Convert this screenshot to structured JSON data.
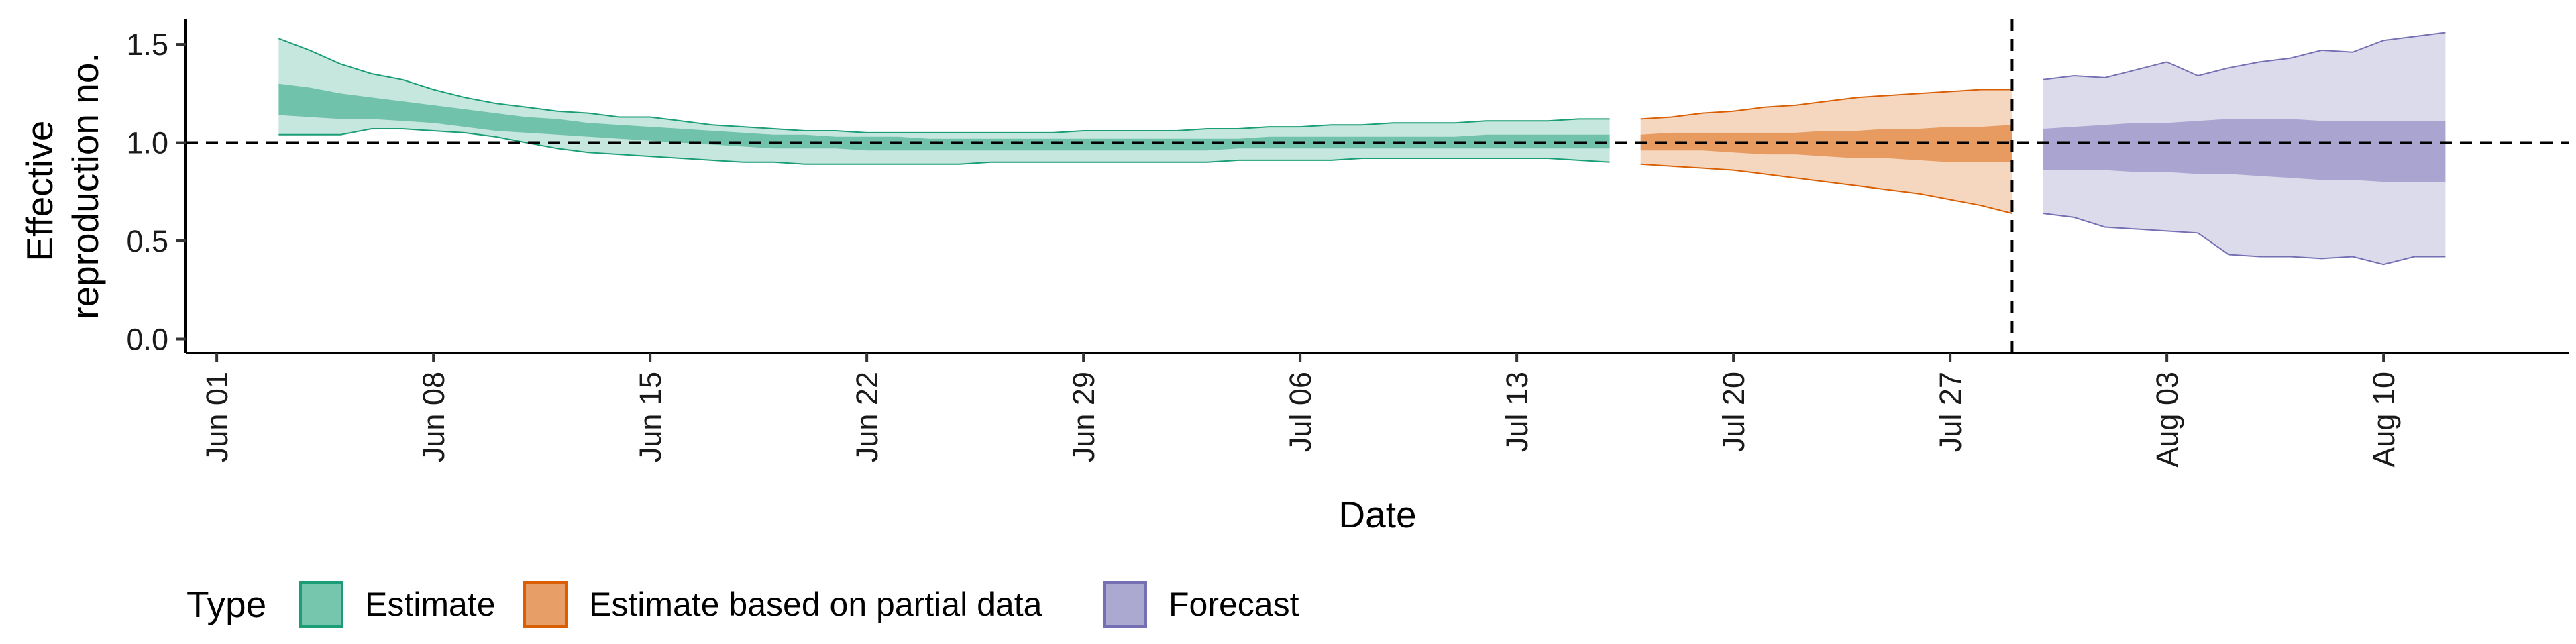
{
  "chart_data": {
    "type": "area",
    "xlabel": "Date",
    "ylabel": [
      "Effective",
      "reproduction no."
    ],
    "x_ticks": [
      "Jun 01",
      "Jun 08",
      "Jun 15",
      "Jun 22",
      "Jun 29",
      "Jul 06",
      "Jul 13",
      "Jul 20",
      "Jul 27",
      "Aug 03",
      "Aug 10"
    ],
    "y_ticks": [
      "0.0",
      "0.5",
      "1.0",
      "1.5"
    ],
    "xlim": [
      "2020-05-31",
      "2020-08-16"
    ],
    "ylim": [
      -0.07,
      1.63
    ],
    "reference_lines": {
      "horizontal_y": 1.0,
      "vertical_date": "2020-07-29"
    },
    "legend": {
      "title": "Type",
      "position": "bottom-left"
    },
    "series": [
      {
        "name": "Estimate",
        "color": "#1b9e77",
        "x": [
          "2020-06-03",
          "2020-06-04",
          "2020-06-05",
          "2020-06-06",
          "2020-06-07",
          "2020-06-08",
          "2020-06-09",
          "2020-06-10",
          "2020-06-11",
          "2020-06-12",
          "2020-06-13",
          "2020-06-14",
          "2020-06-15",
          "2020-06-16",
          "2020-06-17",
          "2020-06-18",
          "2020-06-19",
          "2020-06-20",
          "2020-06-21",
          "2020-06-22",
          "2020-06-23",
          "2020-06-24",
          "2020-06-25",
          "2020-06-26",
          "2020-06-27",
          "2020-06-28",
          "2020-06-29",
          "2020-06-30",
          "2020-07-01",
          "2020-07-02",
          "2020-07-03",
          "2020-07-04",
          "2020-07-05",
          "2020-07-06",
          "2020-07-07",
          "2020-07-08",
          "2020-07-09",
          "2020-07-10",
          "2020-07-11",
          "2020-07-12",
          "2020-07-13",
          "2020-07-14",
          "2020-07-15",
          "2020-07-16"
        ],
        "lower90": [
          1.04,
          1.04,
          1.04,
          1.07,
          1.07,
          1.06,
          1.05,
          1.03,
          1.0,
          0.97,
          0.95,
          0.94,
          0.93,
          0.92,
          0.91,
          0.9,
          0.9,
          0.89,
          0.89,
          0.89,
          0.89,
          0.89,
          0.89,
          0.9,
          0.9,
          0.9,
          0.9,
          0.9,
          0.9,
          0.9,
          0.9,
          0.91,
          0.91,
          0.91,
          0.91,
          0.92,
          0.92,
          0.92,
          0.92,
          0.92,
          0.92,
          0.92,
          0.91,
          0.9
        ],
        "upper90": [
          1.53,
          1.47,
          1.4,
          1.35,
          1.32,
          1.27,
          1.23,
          1.2,
          1.18,
          1.16,
          1.15,
          1.13,
          1.13,
          1.11,
          1.09,
          1.08,
          1.07,
          1.06,
          1.06,
          1.05,
          1.05,
          1.05,
          1.05,
          1.05,
          1.05,
          1.05,
          1.06,
          1.06,
          1.06,
          1.06,
          1.07,
          1.07,
          1.08,
          1.08,
          1.09,
          1.09,
          1.1,
          1.1,
          1.1,
          1.11,
          1.11,
          1.11,
          1.12,
          1.12
        ],
        "lower50": [
          1.14,
          1.13,
          1.12,
          1.12,
          1.11,
          1.1,
          1.08,
          1.06,
          1.05,
          1.04,
          1.03,
          1.02,
          1.01,
          1.0,
          0.99,
          0.98,
          0.97,
          0.97,
          0.97,
          0.96,
          0.96,
          0.96,
          0.96,
          0.96,
          0.96,
          0.96,
          0.96,
          0.96,
          0.96,
          0.96,
          0.96,
          0.97,
          0.97,
          0.97,
          0.97,
          0.97,
          0.97,
          0.97,
          0.97,
          0.97,
          0.97,
          0.97,
          0.97,
          0.97
        ],
        "upper50": [
          1.3,
          1.28,
          1.25,
          1.23,
          1.21,
          1.19,
          1.17,
          1.15,
          1.13,
          1.12,
          1.1,
          1.09,
          1.08,
          1.07,
          1.06,
          1.05,
          1.04,
          1.04,
          1.03,
          1.03,
          1.03,
          1.02,
          1.02,
          1.02,
          1.02,
          1.02,
          1.02,
          1.02,
          1.02,
          1.02,
          1.02,
          1.02,
          1.03,
          1.03,
          1.03,
          1.03,
          1.03,
          1.03,
          1.03,
          1.04,
          1.04,
          1.04,
          1.04,
          1.04
        ]
      },
      {
        "name": "Estimate based on partial data",
        "color": "#d95f02",
        "x": [
          "2020-07-17",
          "2020-07-18",
          "2020-07-19",
          "2020-07-20",
          "2020-07-21",
          "2020-07-22",
          "2020-07-23",
          "2020-07-24",
          "2020-07-25",
          "2020-07-26",
          "2020-07-27",
          "2020-07-28",
          "2020-07-29"
        ],
        "lower90": [
          0.89,
          0.88,
          0.87,
          0.86,
          0.84,
          0.82,
          0.8,
          0.78,
          0.76,
          0.74,
          0.71,
          0.68,
          0.64
        ],
        "upper90": [
          1.12,
          1.13,
          1.15,
          1.16,
          1.18,
          1.19,
          1.21,
          1.23,
          1.24,
          1.25,
          1.26,
          1.27,
          1.27
        ],
        "lower50": [
          0.96,
          0.96,
          0.96,
          0.95,
          0.94,
          0.94,
          0.93,
          0.92,
          0.92,
          0.91,
          0.9,
          0.9,
          0.9
        ],
        "upper50": [
          1.04,
          1.05,
          1.05,
          1.05,
          1.05,
          1.05,
          1.06,
          1.06,
          1.07,
          1.07,
          1.08,
          1.08,
          1.09
        ]
      },
      {
        "name": "Forecast",
        "color": "#7570b3",
        "x": [
          "2020-07-30",
          "2020-07-31",
          "2020-08-01",
          "2020-08-02",
          "2020-08-03",
          "2020-08-04",
          "2020-08-05",
          "2020-08-06",
          "2020-08-07",
          "2020-08-08",
          "2020-08-09",
          "2020-08-10",
          "2020-08-11",
          "2020-08-12"
        ],
        "lower90": [
          0.64,
          0.62,
          0.57,
          0.56,
          0.55,
          0.54,
          0.43,
          0.42,
          0.42,
          0.41,
          0.42,
          0.38,
          0.42,
          0.42
        ],
        "upper90": [
          1.32,
          1.34,
          1.33,
          1.37,
          1.41,
          1.34,
          1.38,
          1.41,
          1.43,
          1.47,
          1.46,
          1.52,
          1.54,
          1.56
        ],
        "lower50": [
          0.86,
          0.86,
          0.86,
          0.85,
          0.85,
          0.84,
          0.84,
          0.83,
          0.82,
          0.81,
          0.81,
          0.8,
          0.8,
          0.8
        ],
        "upper50": [
          1.07,
          1.08,
          1.09,
          1.1,
          1.1,
          1.11,
          1.12,
          1.12,
          1.12,
          1.11,
          1.11,
          1.11,
          1.11,
          1.11
        ]
      }
    ]
  }
}
